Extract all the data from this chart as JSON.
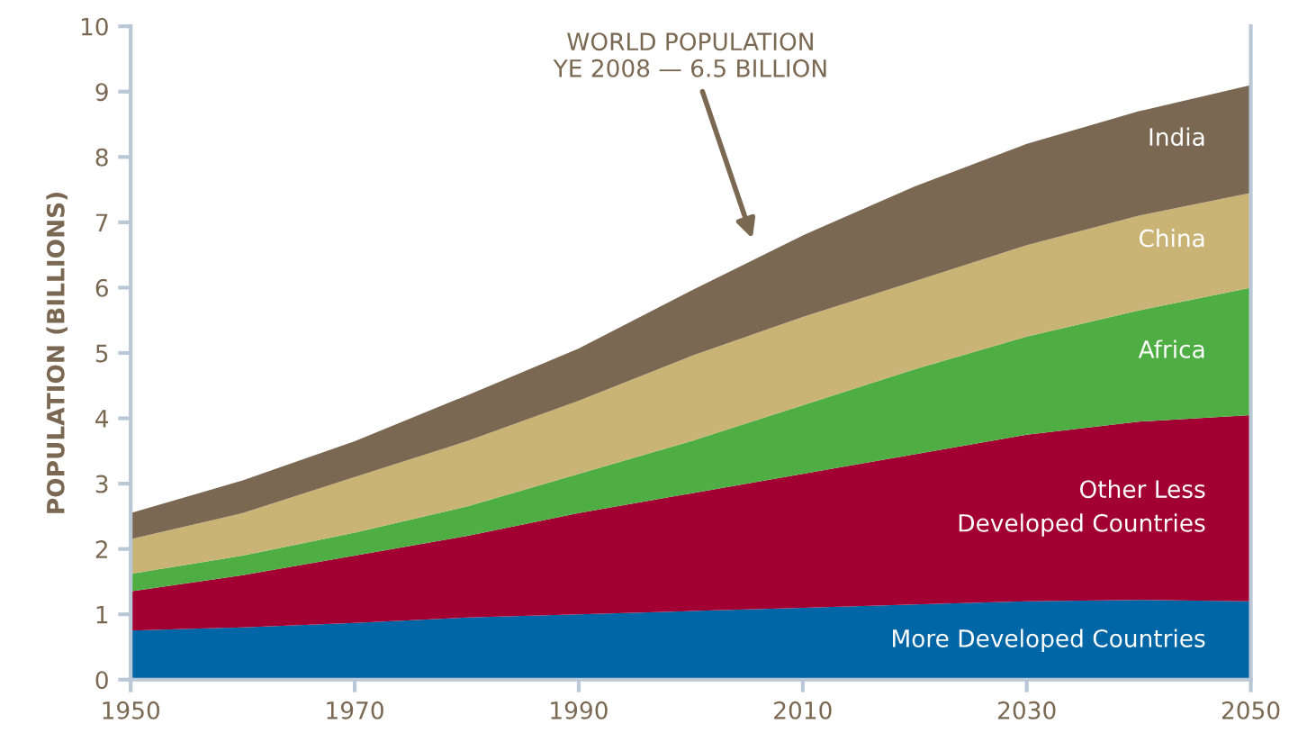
{
  "chart_data": {
    "type": "area",
    "stacked": true,
    "ylabel": "POPULATION (BILLIONS)",
    "x": [
      1950,
      1960,
      1970,
      1980,
      1990,
      2000,
      2010,
      2020,
      2030,
      2040,
      2050
    ],
    "series": [
      {
        "name": "More Developed Countries",
        "color": "#0066a6",
        "values": [
          0.75,
          0.8,
          0.87,
          0.95,
          1.0,
          1.05,
          1.1,
          1.15,
          1.2,
          1.22,
          1.2
        ]
      },
      {
        "name": "Other Less\nDeveloped Countries",
        "color": "#a20032",
        "values": [
          0.6,
          0.8,
          1.03,
          1.25,
          1.55,
          1.8,
          2.05,
          2.3,
          2.55,
          2.73,
          2.85
        ]
      },
      {
        "name": "Africa",
        "color": "#4eae44",
        "values": [
          0.27,
          0.3,
          0.35,
          0.45,
          0.6,
          0.8,
          1.05,
          1.3,
          1.5,
          1.7,
          1.95
        ]
      },
      {
        "name": "China",
        "color": "#c9b476",
        "values": [
          0.53,
          0.65,
          0.85,
          1.0,
          1.12,
          1.3,
          1.35,
          1.35,
          1.4,
          1.45,
          1.45
        ]
      },
      {
        "name": "India",
        "color": "#7a6853",
        "values": [
          0.4,
          0.5,
          0.55,
          0.7,
          0.8,
          1.0,
          1.25,
          1.45,
          1.55,
          1.6,
          1.65
        ]
      }
    ],
    "xlim": [
      1950,
      2050
    ],
    "xticks": [
      1950,
      1970,
      1990,
      2010,
      2030,
      2050
    ],
    "ylim": [
      0,
      10
    ],
    "yticks": [
      0,
      1,
      2,
      3,
      4,
      5,
      6,
      7,
      8,
      9,
      10
    ],
    "grid": false,
    "legend": false,
    "annotations": [
      "WORLD POPULATION\nYE 2008 — 6.5 BILLION"
    ]
  }
}
